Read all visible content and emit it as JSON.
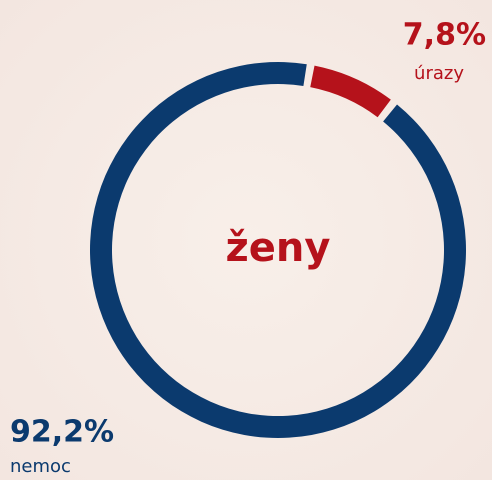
{
  "chart_data": {
    "type": "donut",
    "center_label": "ženy",
    "categories": [
      "úrazy",
      "nemoc"
    ],
    "values": [
      7.8,
      92.2
    ],
    "value_labels": [
      "7,8%",
      "92,2%"
    ],
    "colors": [
      "#b5121b",
      "#0b3a6e"
    ]
  }
}
